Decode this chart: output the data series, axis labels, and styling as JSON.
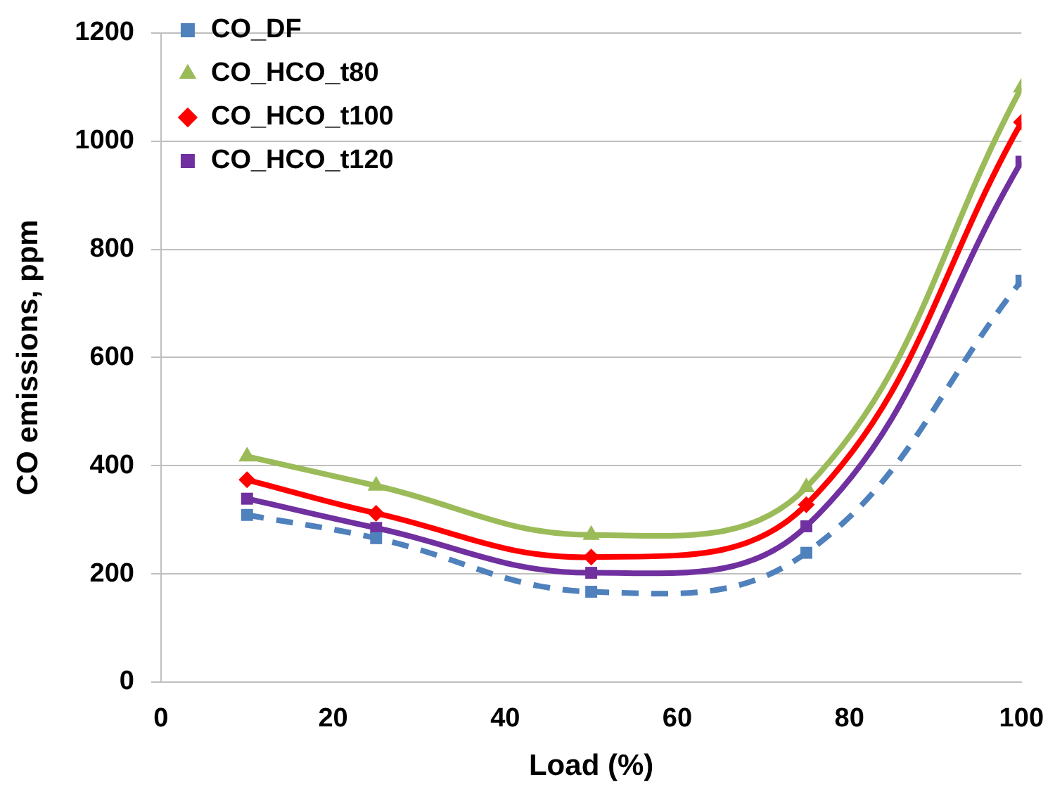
{
  "chart_data": {
    "type": "line",
    "xlabel": "Load (%)",
    "ylabel": "CO emissions, ppm",
    "xlim": [
      0,
      100
    ],
    "xticks": [
      0,
      20,
      40,
      60,
      80,
      100
    ],
    "ylim": [
      0,
      1200
    ],
    "yticks": [
      0,
      200,
      400,
      600,
      800,
      1000,
      1200
    ],
    "grid": "y",
    "legend": "top left",
    "x": [
      10,
      25,
      50,
      75,
      100
    ],
    "series": [
      {
        "name": "CO_DF",
        "color": "#4f81bd",
        "marker": "square",
        "line_style": "dashed",
        "values": [
          309,
          266,
          167,
          239,
          742
        ]
      },
      {
        "name": "CO_HCO_t80",
        "color": "#9bbb59",
        "marker": "triangle",
        "line_style": "solid",
        "values": [
          417,
          363,
          272,
          360,
          1099
        ]
      },
      {
        "name": "CO_HCO_t100",
        "color": "#ff0000",
        "marker": "diamond",
        "line_style": "solid",
        "values": [
          374,
          312,
          231,
          328,
          1035
        ]
      },
      {
        "name": "CO_HCO_t120",
        "color": "#7030a0",
        "marker": "square",
        "line_style": "solid",
        "values": [
          339,
          285,
          202,
          288,
          962
        ]
      }
    ]
  }
}
